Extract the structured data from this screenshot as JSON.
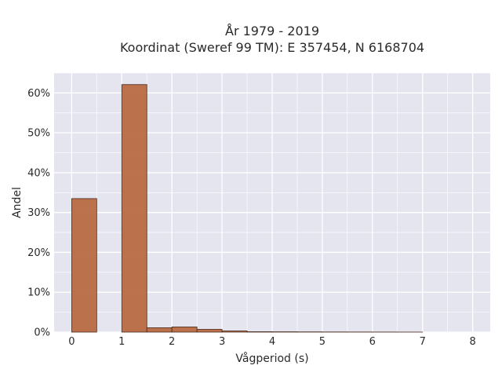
{
  "chart_data": {
    "type": "bar",
    "title": "År 1979 - 2019",
    "subtitle": "Koordinat (Sweref 99 TM): E 357454, N 6168704",
    "xlabel": "Vågperiod (s)",
    "ylabel": "Andel",
    "xlim": [
      -0.35,
      8.35
    ],
    "ylim": [
      0,
      0.65
    ],
    "x_ticks": [
      0,
      1,
      2,
      3,
      4,
      5,
      6,
      7,
      8
    ],
    "x_tick_labels": [
      "0",
      "1",
      "2",
      "3",
      "4",
      "5",
      "6",
      "7",
      "8"
    ],
    "y_ticks": [
      0,
      0.1,
      0.2,
      0.3,
      0.4,
      0.5,
      0.6
    ],
    "y_tick_labels": [
      "0%",
      "10%",
      "20%",
      "30%",
      "40%",
      "50%",
      "60%"
    ],
    "grid": true,
    "bar_width": 0.5,
    "bar_color": "#b5643a",
    "bar_edge_color": "#4a2e20",
    "plot_background": "#e5e5f0",
    "grid_color": "#ffffff",
    "bins": [
      {
        "x": 0.0,
        "value": 0.335
      },
      {
        "x": 0.5,
        "value": 0.0
      },
      {
        "x": 1.0,
        "value": 0.621
      },
      {
        "x": 1.5,
        "value": 0.011
      },
      {
        "x": 2.0,
        "value": 0.013
      },
      {
        "x": 2.5,
        "value": 0.007
      },
      {
        "x": 3.0,
        "value": 0.003
      },
      {
        "x": 3.5,
        "value": 0.001
      },
      {
        "x": 4.0,
        "value": 0.0008
      },
      {
        "x": 4.5,
        "value": 0.0006
      },
      {
        "x": 5.0,
        "value": 0.0004
      },
      {
        "x": 5.5,
        "value": 0.0003
      },
      {
        "x": 6.0,
        "value": 0.0002
      },
      {
        "x": 6.5,
        "value": 0.0001
      }
    ]
  }
}
